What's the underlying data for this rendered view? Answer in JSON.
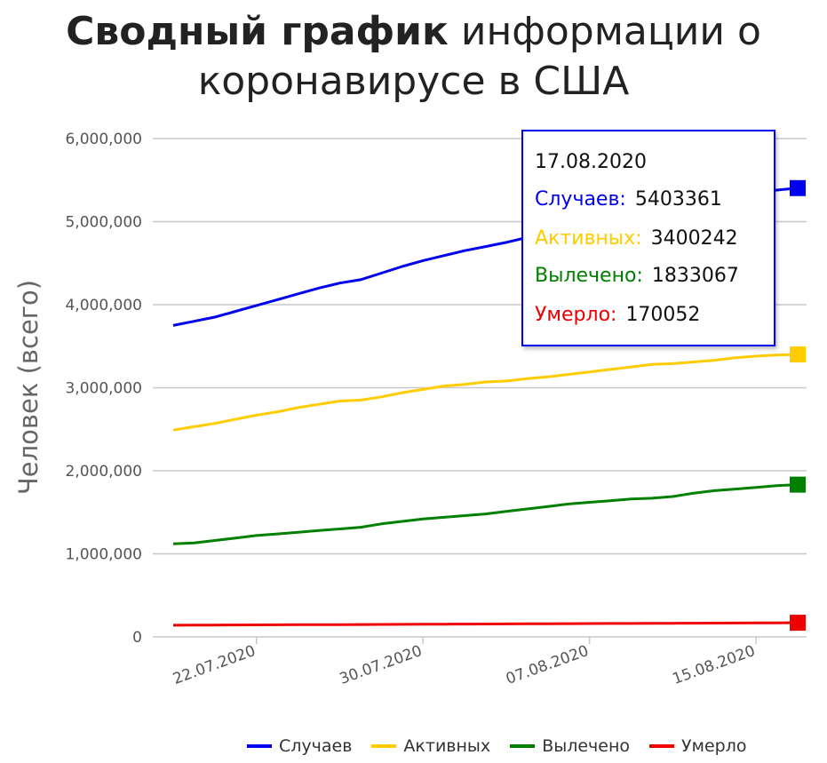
{
  "title": {
    "bold": "Сводный график",
    "rest": "информации о коронавирусе в США"
  },
  "chart_data": {
    "type": "line",
    "title": "Сводный график информации о коронавирусе в США",
    "xlabel": "",
    "ylabel": "Человек (всего)",
    "ylim": [
      0,
      6000000
    ],
    "yticks": [
      "0",
      "1,000,000",
      "2,000,000",
      "3,000,000",
      "4,000,000",
      "5,000,000",
      "6,000,000"
    ],
    "xticks": [
      "22.07.2020",
      "30.07.2020",
      "07.08.2020",
      "15.08.2020"
    ],
    "x": [
      "18.07.2020",
      "19.07.2020",
      "20.07.2020",
      "21.07.2020",
      "22.07.2020",
      "23.07.2020",
      "24.07.2020",
      "25.07.2020",
      "26.07.2020",
      "27.07.2020",
      "28.07.2020",
      "29.07.2020",
      "30.07.2020",
      "31.07.2020",
      "01.08.2020",
      "02.08.2020",
      "03.08.2020",
      "04.08.2020",
      "05.08.2020",
      "06.08.2020",
      "07.08.2020",
      "08.08.2020",
      "09.08.2020",
      "10.08.2020",
      "11.08.2020",
      "12.08.2020",
      "13.08.2020",
      "14.08.2020",
      "15.08.2020",
      "16.08.2020",
      "17.08.2020"
    ],
    "series": [
      {
        "name": "Случаев",
        "color": "#0000ee",
        "values": [
          3750000,
          3800000,
          3850000,
          3920000,
          3990000,
          4060000,
          4130000,
          4200000,
          4260000,
          4300000,
          4380000,
          4460000,
          4530000,
          4590000,
          4650000,
          4700000,
          4750000,
          4810000,
          4870000,
          4930000,
          4990000,
          5050000,
          5100000,
          5140000,
          5190000,
          5240000,
          5280000,
          5320000,
          5350000,
          5380000,
          5403361
        ]
      },
      {
        "name": "Активных",
        "color": "#ffcc00",
        "values": [
          2490000,
          2530000,
          2570000,
          2620000,
          2670000,
          2710000,
          2760000,
          2800000,
          2840000,
          2850000,
          2890000,
          2940000,
          2980000,
          3020000,
          3040000,
          3070000,
          3080000,
          3110000,
          3130000,
          3160000,
          3190000,
          3220000,
          3250000,
          3280000,
          3290000,
          3310000,
          3330000,
          3360000,
          3380000,
          3395000,
          3400242
        ]
      },
      {
        "name": "Вылечено",
        "color": "#008000",
        "values": [
          1120000,
          1130000,
          1160000,
          1190000,
          1220000,
          1240000,
          1260000,
          1280000,
          1300000,
          1320000,
          1360000,
          1390000,
          1420000,
          1440000,
          1460000,
          1480000,
          1510000,
          1540000,
          1570000,
          1600000,
          1620000,
          1640000,
          1660000,
          1670000,
          1690000,
          1730000,
          1760000,
          1780000,
          1800000,
          1820000,
          1833067
        ]
      },
      {
        "name": "Умерло",
        "color": "#ee0000",
        "values": [
          140000,
          141000,
          142000,
          143000,
          144000,
          145000,
          146000,
          147000,
          148000,
          149000,
          150000,
          151000,
          152000,
          153000,
          154000,
          155000,
          156000,
          157000,
          158000,
          159000,
          160000,
          161000,
          162000,
          163000,
          164000,
          165000,
          166000,
          167000,
          168000,
          169000,
          170052
        ]
      }
    ],
    "legend_position": "bottom-right",
    "grid": true
  },
  "tooltip": {
    "date": "17.08.2020",
    "rows": [
      {
        "label": "Случаев:",
        "value": "5403361",
        "color": "#0000ee"
      },
      {
        "label": "Активных:",
        "value": "3400242",
        "color": "#ffcc00"
      },
      {
        "label": "Вылечено:",
        "value": "1833067",
        "color": "#008000"
      },
      {
        "label": "Умерло:",
        "value": "170052",
        "color": "#ee0000"
      }
    ]
  },
  "legend": [
    {
      "label": "Случаев",
      "color": "#0000ee"
    },
    {
      "label": "Активных",
      "color": "#ffcc00"
    },
    {
      "label": "Вылечено",
      "color": "#008000"
    },
    {
      "label": "Умерло",
      "color": "#ee0000"
    }
  ]
}
